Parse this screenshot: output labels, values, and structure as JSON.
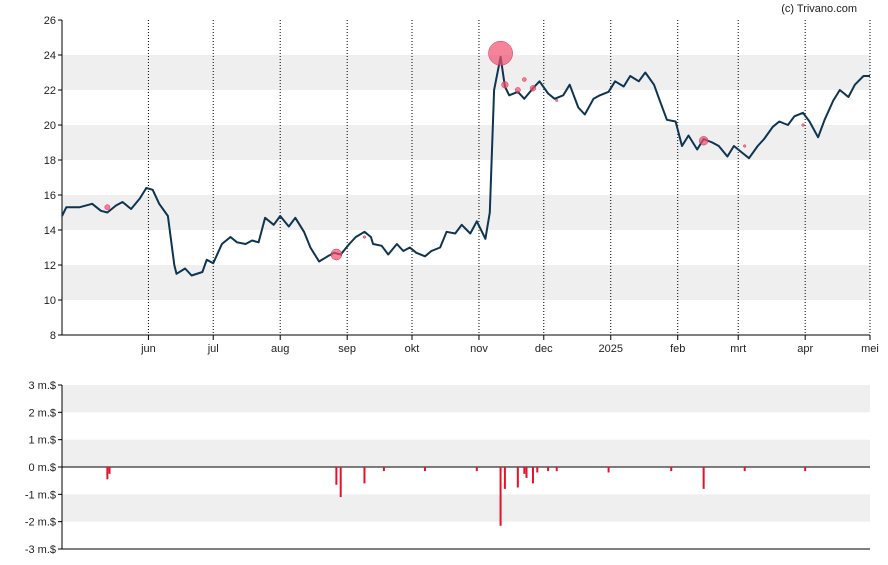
{
  "credit": "(c) Trivano.com",
  "colors": {
    "price_line": "#0d3451",
    "bubble": "#f0506e",
    "volume_bar": "#e8102c",
    "band": "#efefef",
    "axis": "#000000"
  },
  "chart_data": [
    {
      "type": "line",
      "title": "",
      "ylim": [
        8,
        26
      ],
      "yticks": [
        8,
        10,
        12,
        14,
        16,
        18,
        20,
        22,
        24,
        26
      ],
      "grid": {
        "horizontal_bands": true,
        "vertical_dotted": true
      },
      "x_range": [
        "2024-04-22",
        "2025-05-01"
      ],
      "month_ticks": [
        {
          "label": "jun",
          "date": "2024-06-01"
        },
        {
          "label": "jul",
          "date": "2024-07-01"
        },
        {
          "label": "aug",
          "date": "2024-08-01"
        },
        {
          "label": "sep",
          "date": "2024-09-01"
        },
        {
          "label": "okt",
          "date": "2024-10-01"
        },
        {
          "label": "nov",
          "date": "2024-11-01"
        },
        {
          "label": "dec",
          "date": "2024-12-01"
        },
        {
          "label": "2025",
          "date": "2025-01-01"
        },
        {
          "label": "feb",
          "date": "2025-02-01"
        },
        {
          "label": "mrt",
          "date": "2025-03-01"
        },
        {
          "label": "apr",
          "date": "2025-04-01"
        },
        {
          "label": "mei",
          "date": "2025-05-01"
        }
      ],
      "series": [
        {
          "points": [
            [
              "2024-04-22",
              14.8
            ],
            [
              "2024-04-24",
              15.3
            ],
            [
              "2024-04-30",
              15.3
            ],
            [
              "2024-05-06",
              15.5
            ],
            [
              "2024-05-10",
              15.1
            ],
            [
              "2024-05-13",
              15.0
            ],
            [
              "2024-05-17",
              15.4
            ],
            [
              "2024-05-20",
              15.6
            ],
            [
              "2024-05-24",
              15.2
            ],
            [
              "2024-05-28",
              15.8
            ],
            [
              "2024-05-31",
              16.4
            ],
            [
              "2024-06-03",
              16.3
            ],
            [
              "2024-06-06",
              15.5
            ],
            [
              "2024-06-10",
              14.8
            ],
            [
              "2024-06-13",
              12.0
            ],
            [
              "2024-06-14",
              11.5
            ],
            [
              "2024-06-18",
              11.8
            ],
            [
              "2024-06-21",
              11.4
            ],
            [
              "2024-06-26",
              11.6
            ],
            [
              "2024-06-28",
              12.3
            ],
            [
              "2024-07-01",
              12.1
            ],
            [
              "2024-07-05",
              13.2
            ],
            [
              "2024-07-09",
              13.6
            ],
            [
              "2024-07-12",
              13.3
            ],
            [
              "2024-07-16",
              13.2
            ],
            [
              "2024-07-19",
              13.4
            ],
            [
              "2024-07-22",
              13.3
            ],
            [
              "2024-07-25",
              14.7
            ],
            [
              "2024-07-29",
              14.3
            ],
            [
              "2024-08-01",
              14.8
            ],
            [
              "2024-08-05",
              14.2
            ],
            [
              "2024-08-08",
              14.7
            ],
            [
              "2024-08-12",
              13.9
            ],
            [
              "2024-08-15",
              13.0
            ],
            [
              "2024-08-19",
              12.2
            ],
            [
              "2024-08-23",
              12.5
            ],
            [
              "2024-08-26",
              12.7
            ],
            [
              "2024-08-29",
              12.6
            ],
            [
              "2024-09-02",
              13.2
            ],
            [
              "2024-09-05",
              13.6
            ],
            [
              "2024-09-09",
              13.9
            ],
            [
              "2024-09-12",
              13.6
            ],
            [
              "2024-09-13",
              13.2
            ],
            [
              "2024-09-17",
              13.1
            ],
            [
              "2024-09-20",
              12.6
            ],
            [
              "2024-09-24",
              13.2
            ],
            [
              "2024-09-27",
              12.8
            ],
            [
              "2024-09-30",
              13.0
            ],
            [
              "2024-10-03",
              12.7
            ],
            [
              "2024-10-07",
              12.5
            ],
            [
              "2024-10-10",
              12.8
            ],
            [
              "2024-10-14",
              13.0
            ],
            [
              "2024-10-17",
              13.9
            ],
            [
              "2024-10-21",
              13.8
            ],
            [
              "2024-10-24",
              14.3
            ],
            [
              "2024-10-28",
              13.8
            ],
            [
              "2024-10-31",
              14.5
            ],
            [
              "2024-11-04",
              13.5
            ],
            [
              "2024-11-06",
              15.0
            ],
            [
              "2024-11-08",
              22.0
            ],
            [
              "2024-11-11",
              23.9
            ],
            [
              "2024-11-13",
              22.2
            ],
            [
              "2024-11-15",
              21.7
            ],
            [
              "2024-11-19",
              21.9
            ],
            [
              "2024-11-22",
              21.5
            ],
            [
              "2024-11-26",
              22.1
            ],
            [
              "2024-11-29",
              22.5
            ],
            [
              "2024-12-03",
              21.8
            ],
            [
              "2024-12-06",
              21.5
            ],
            [
              "2024-12-10",
              21.7
            ],
            [
              "2024-12-13",
              22.3
            ],
            [
              "2024-12-17",
              21.0
            ],
            [
              "2024-12-20",
              20.6
            ],
            [
              "2024-12-24",
              21.5
            ],
            [
              "2024-12-27",
              21.7
            ],
            [
              "2024-12-31",
              21.9
            ],
            [
              "2025-01-03",
              22.5
            ],
            [
              "2025-01-07",
              22.2
            ],
            [
              "2025-01-10",
              22.8
            ],
            [
              "2025-01-14",
              22.5
            ],
            [
              "2025-01-17",
              23.0
            ],
            [
              "2025-01-21",
              22.3
            ],
            [
              "2025-01-24",
              21.3
            ],
            [
              "2025-01-27",
              20.3
            ],
            [
              "2025-01-31",
              20.2
            ],
            [
              "2025-02-03",
              18.8
            ],
            [
              "2025-02-06",
              19.4
            ],
            [
              "2025-02-10",
              18.6
            ],
            [
              "2025-02-13",
              19.2
            ],
            [
              "2025-02-17",
              19.0
            ],
            [
              "2025-02-20",
              18.8
            ],
            [
              "2025-02-24",
              18.2
            ],
            [
              "2025-02-27",
              18.8
            ],
            [
              "2025-03-03",
              18.4
            ],
            [
              "2025-03-06",
              18.1
            ],
            [
              "2025-03-10",
              18.8
            ],
            [
              "2025-03-13",
              19.2
            ],
            [
              "2025-03-17",
              19.9
            ],
            [
              "2025-03-20",
              20.2
            ],
            [
              "2025-03-24",
              20.0
            ],
            [
              "2025-03-27",
              20.5
            ],
            [
              "2025-03-31",
              20.7
            ],
            [
              "2025-04-03",
              20.2
            ],
            [
              "2025-04-07",
              19.3
            ],
            [
              "2025-04-10",
              20.3
            ],
            [
              "2025-04-14",
              21.4
            ],
            [
              "2025-04-17",
              22.0
            ],
            [
              "2025-04-21",
              21.6
            ],
            [
              "2025-04-24",
              22.3
            ],
            [
              "2025-04-28",
              22.8
            ],
            [
              "2025-05-01",
              22.8
            ]
          ]
        }
      ],
      "bubbles": [
        {
          "date": "2024-05-13",
          "y": 15.3,
          "size": 1.2
        },
        {
          "date": "2024-08-27",
          "y": 12.6,
          "size": 2.5
        },
        {
          "date": "2024-09-09",
          "y": 13.6,
          "size": 0.6
        },
        {
          "date": "2024-11-11",
          "y": 24.1,
          "size": 5.5
        },
        {
          "date": "2024-11-13",
          "y": 22.3,
          "size": 1.5
        },
        {
          "date": "2024-11-19",
          "y": 22.0,
          "size": 1.2
        },
        {
          "date": "2024-11-22",
          "y": 22.6,
          "size": 0.9
        },
        {
          "date": "2024-11-26",
          "y": 22.1,
          "size": 1.3
        },
        {
          "date": "2024-12-07",
          "y": 21.4,
          "size": 0.5
        },
        {
          "date": "2025-02-13",
          "y": 19.1,
          "size": 2.0
        },
        {
          "date": "2025-03-04",
          "y": 18.8,
          "size": 0.6
        },
        {
          "date": "2025-03-31",
          "y": 20.0,
          "size": 0.6
        }
      ]
    },
    {
      "type": "bar",
      "ylim": [
        -3,
        3
      ],
      "yticks": [
        {
          "value": 3,
          "label": "3 m.$"
        },
        {
          "value": 2,
          "label": "2 m.$"
        },
        {
          "value": 1,
          "label": "1 m.$"
        },
        {
          "value": 0,
          "label": "0 m.$"
        },
        {
          "value": -1,
          "label": "-1 m.$"
        },
        {
          "value": -2,
          "label": "-2 m.$"
        },
        {
          "value": -3,
          "label": "-3 m.$"
        }
      ],
      "bars": [
        {
          "date": "2024-05-13",
          "value": -0.45
        },
        {
          "date": "2024-05-14",
          "value": -0.25
        },
        {
          "date": "2024-08-27",
          "value": -0.65
        },
        {
          "date": "2024-08-29",
          "value": -1.1
        },
        {
          "date": "2024-09-09",
          "value": -0.6
        },
        {
          "date": "2024-09-18",
          "value": -0.15
        },
        {
          "date": "2024-10-07",
          "value": -0.15
        },
        {
          "date": "2024-10-31",
          "value": -0.15
        },
        {
          "date": "2024-11-11",
          "value": -2.15
        },
        {
          "date": "2024-11-13",
          "value": -0.8
        },
        {
          "date": "2024-11-19",
          "value": -0.75
        },
        {
          "date": "2024-11-22",
          "value": -0.25
        },
        {
          "date": "2024-11-23",
          "value": -0.4
        },
        {
          "date": "2024-11-26",
          "value": -0.6
        },
        {
          "date": "2024-11-28",
          "value": -0.2
        },
        {
          "date": "2024-12-03",
          "value": -0.15
        },
        {
          "date": "2024-12-07",
          "value": -0.15
        },
        {
          "date": "2024-12-31",
          "value": -0.2
        },
        {
          "date": "2025-01-29",
          "value": -0.15
        },
        {
          "date": "2025-02-13",
          "value": -0.8
        },
        {
          "date": "2025-03-04",
          "value": -0.15
        },
        {
          "date": "2025-04-01",
          "value": -0.15
        }
      ]
    }
  ]
}
